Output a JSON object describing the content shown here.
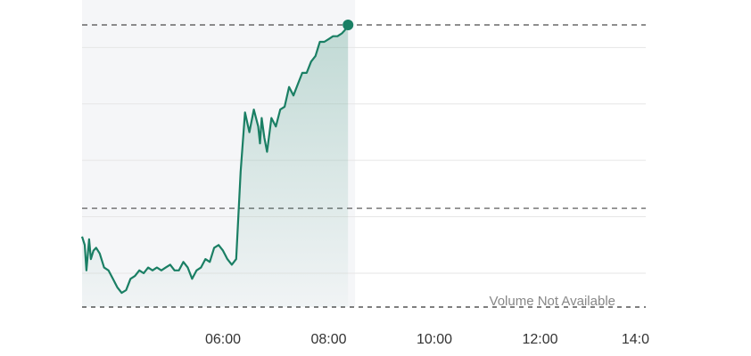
{
  "chart_data": {
    "type": "area",
    "title": "",
    "xlabel": "",
    "ylabel": "",
    "x_ticks": [
      "06:00",
      "08:00",
      "10:00",
      "12:00",
      "14:0"
    ],
    "x_range": [
      "03:20",
      "14:00"
    ],
    "session_shading_end": "08:30",
    "y_range": [
      0,
      100
    ],
    "y_gridlines": [
      12,
      32,
      52,
      72,
      92
    ],
    "reference_lines": [
      {
        "label": "previous-close",
        "value": 35
      },
      {
        "label": "current-price",
        "value": 100
      }
    ],
    "note": "Volume Not Available",
    "grid": true,
    "legend": "none",
    "colors": {
      "line": "#1a7f64",
      "fill": "#1a7f64",
      "shading": "#f5f6f8",
      "grid": "#e6e6e6",
      "dashed": "#4a4a4a"
    },
    "series": [
      {
        "x": [
          "03:20",
          "03:23",
          "03:25",
          "03:28",
          "03:30",
          "03:33",
          "03:36",
          "03:40",
          "03:45",
          "03:50",
          "03:55",
          "04:00",
          "04:05",
          "04:10",
          "04:15",
          "04:20",
          "04:25",
          "04:30",
          "04:35",
          "04:40",
          "04:45",
          "04:50",
          "04:55",
          "05:00",
          "05:05",
          "05:10",
          "05:15",
          "05:20",
          "05:25",
          "05:30",
          "05:35",
          "05:40",
          "05:45",
          "05:50",
          "05:55",
          "06:00",
          "06:05",
          "06:10",
          "06:15",
          "06:20",
          "06:25",
          "06:30",
          "06:35",
          "06:40",
          "06:42",
          "06:44",
          "06:47",
          "06:50",
          "06:55",
          "07:00",
          "07:05",
          "07:10",
          "07:15",
          "07:20",
          "07:25",
          "07:30",
          "07:35",
          "07:40",
          "07:45",
          "07:50",
          "07:55",
          "08:00",
          "08:05",
          "08:10",
          "08:15",
          "08:18",
          "08:20",
          "08:22"
        ],
        "values": [
          25,
          22,
          13,
          24,
          17,
          20,
          21,
          19,
          14,
          13,
          10,
          7,
          5,
          6,
          10,
          11,
          13,
          12,
          14,
          13,
          14,
          13,
          14,
          15,
          13,
          13,
          16,
          14,
          10,
          13,
          14,
          17,
          16,
          21,
          22,
          20,
          17,
          15,
          17,
          48,
          69,
          62,
          70,
          64,
          58,
          67,
          60,
          55,
          67,
          64,
          70,
          71,
          78,
          75,
          79,
          83,
          83,
          87,
          89,
          94,
          94,
          95,
          96,
          96,
          97,
          98,
          99,
          100
        ]
      }
    ]
  }
}
